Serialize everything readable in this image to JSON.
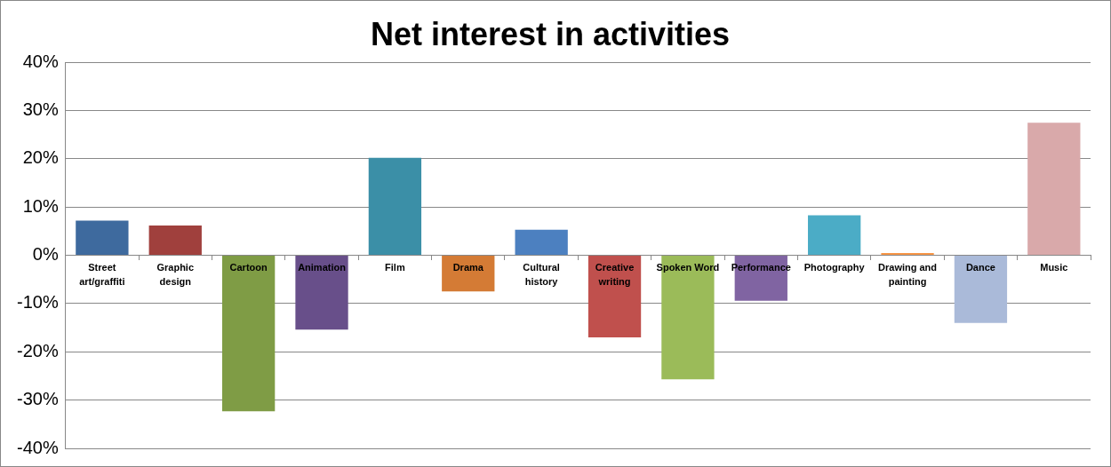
{
  "chart_data": {
    "type": "bar",
    "title": "Net interest in activities",
    "categories": [
      "Street art/graffiti",
      "Graphic design",
      "Cartoon",
      "Animation",
      "Film",
      "Drama",
      "Cultural history",
      "Creative writing",
      "Spoken Word",
      "Performance",
      "Photography",
      "Drawing and painting",
      "Dance",
      "Music"
    ],
    "values": [
      7.2,
      6.2,
      -32.3,
      -15.4,
      20.2,
      -7.5,
      5.3,
      -17,
      -25.7,
      -9.4,
      8.3,
      0.5,
      -14,
      27.5
    ],
    "colors": [
      "#3e6a9e",
      "#a0403d",
      "#7f9c45",
      "#684f8a",
      "#3b8fa7",
      "#d47b35",
      "#4c80c0",
      "#c0504d",
      "#9bbb59",
      "#8064a2",
      "#4bacc6",
      "#f79646",
      "#aabad9",
      "#d9a9aa"
    ],
    "ylim": [
      -40,
      40
    ],
    "yticks": [
      {
        "value": -40,
        "label": "-40%"
      },
      {
        "value": -30,
        "label": "-30%"
      },
      {
        "value": -20,
        "label": "-20%"
      },
      {
        "value": -10,
        "label": "-10%"
      },
      {
        "value": 0,
        "label": "0%"
      },
      {
        "value": 10,
        "label": "10%"
      },
      {
        "value": 20,
        "label": "20%"
      },
      {
        "value": 30,
        "label": "30%"
      },
      {
        "value": 40,
        "label": "40%"
      }
    ],
    "grid": "y"
  }
}
